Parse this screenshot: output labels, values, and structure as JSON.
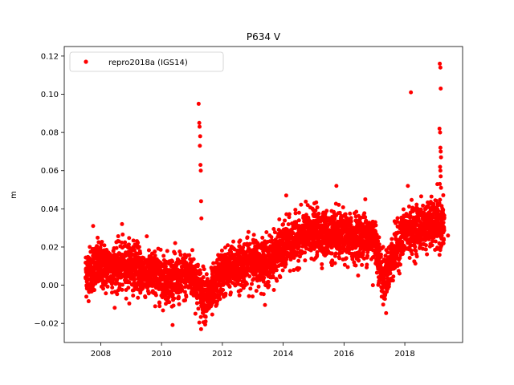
{
  "chart_data": {
    "type": "scatter",
    "title": "P634 V",
    "xlabel": "",
    "ylabel": "m",
    "xlim": [
      2006.8,
      2019.9
    ],
    "ylim": [
      -0.03,
      0.125
    ],
    "xticks": [
      2008,
      2010,
      2012,
      2014,
      2016,
      2018
    ],
    "xtick_labels": [
      "2008",
      "2010",
      "2012",
      "2014",
      "2016",
      "2018"
    ],
    "yticks": [
      -0.02,
      0.0,
      0.02,
      0.04,
      0.06,
      0.08,
      0.1,
      0.12
    ],
    "ytick_labels": [
      "−0.02",
      "0.00",
      "0.02",
      "0.04",
      "0.06",
      "0.08",
      "0.10",
      "0.12"
    ],
    "grid": false,
    "legend_position": "top-left",
    "series": [
      {
        "name": "repro2018a (IGS14)",
        "color": "#ff0000",
        "marker": "circle",
        "trend": {
          "x": [
            2007.5,
            2007.8,
            2008.5,
            2009.0,
            2009.5,
            2010.0,
            2010.5,
            2011.0,
            2011.3,
            2011.6,
            2012.0,
            2012.5,
            2013.0,
            2013.5,
            2014.0,
            2014.5,
            2015.0,
            2015.5,
            2016.0,
            2016.5,
            2017.0,
            2017.3,
            2017.6,
            2018.0,
            2018.5,
            2019.0,
            2019.3
          ],
          "y": [
            0.006,
            0.01,
            0.009,
            0.011,
            0.006,
            0.004,
            0.003,
            0.006,
            -0.004,
            -0.006,
            0.007,
            0.01,
            0.013,
            0.012,
            0.02,
            0.024,
            0.028,
            0.026,
            0.025,
            0.025,
            0.025,
            0.002,
            0.015,
            0.028,
            0.03,
            0.032,
            0.03
          ]
        },
        "scatter_spread": 0.006,
        "outliers": [
          {
            "x": 2007.75,
            "y": 0.031
          },
          {
            "x": 2008.7,
            "y": 0.032
          },
          {
            "x": 2011.22,
            "y": 0.095
          },
          {
            "x": 2011.24,
            "y": 0.085
          },
          {
            "x": 2011.25,
            "y": 0.083
          },
          {
            "x": 2011.27,
            "y": 0.078
          },
          {
            "x": 2011.26,
            "y": 0.073
          },
          {
            "x": 2011.28,
            "y": 0.063
          },
          {
            "x": 2011.29,
            "y": 0.06
          },
          {
            "x": 2011.3,
            "y": 0.044
          },
          {
            "x": 2011.31,
            "y": 0.035
          },
          {
            "x": 2011.45,
            "y": -0.019
          },
          {
            "x": 2011.3,
            "y": -0.023
          },
          {
            "x": 2014.1,
            "y": 0.047
          },
          {
            "x": 2015.75,
            "y": 0.052
          },
          {
            "x": 2016.7,
            "y": 0.045
          },
          {
            "x": 2016.95,
            "y": 0.0
          },
          {
            "x": 2018.2,
            "y": 0.101
          },
          {
            "x": 2018.1,
            "y": 0.052
          },
          {
            "x": 2019.15,
            "y": 0.116
          },
          {
            "x": 2019.17,
            "y": 0.114
          },
          {
            "x": 2019.18,
            "y": 0.103
          },
          {
            "x": 2019.14,
            "y": 0.082
          },
          {
            "x": 2019.16,
            "y": 0.08
          },
          {
            "x": 2019.17,
            "y": 0.072
          },
          {
            "x": 2019.18,
            "y": 0.07
          },
          {
            "x": 2019.19,
            "y": 0.067
          },
          {
            "x": 2019.16,
            "y": 0.062
          },
          {
            "x": 2019.17,
            "y": 0.06
          },
          {
            "x": 2019.18,
            "y": 0.057
          },
          {
            "x": 2019.15,
            "y": 0.053
          },
          {
            "x": 2019.19,
            "y": 0.051
          },
          {
            "x": 2019.42,
            "y": 0.026
          }
        ]
      }
    ]
  }
}
